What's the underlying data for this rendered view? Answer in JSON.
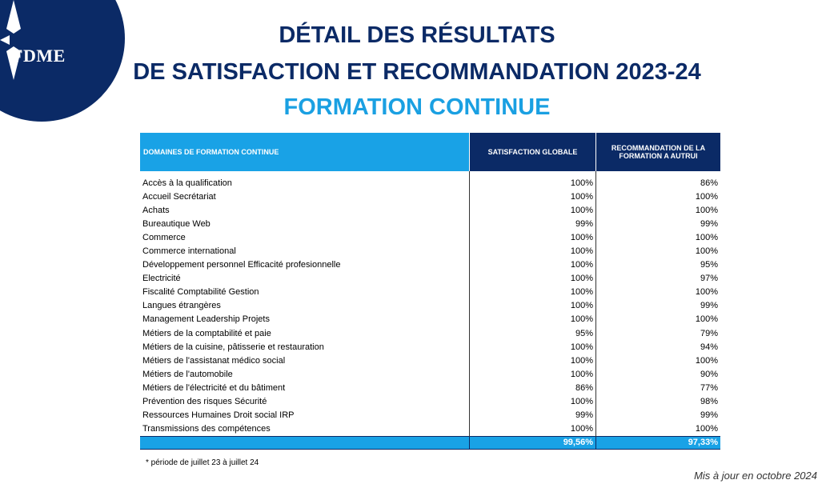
{
  "logo": {
    "text": "FDME"
  },
  "header": {
    "line1": "DÉTAIL DES RÉSULTATS",
    "line2": "DE SATISFACTION ET RECOMMANDATION 2023-24",
    "line3": "FORMATION CONTINUE"
  },
  "table": {
    "headers": [
      "DOMAINES DE FORMATION CONTINUE",
      "SATISFACTION GLOBALE",
      "RECOMMANDATION DE LA FORMATION A AUTRUI"
    ],
    "rows": [
      [
        "Accès à la qualification",
        "100%",
        "86%"
      ],
      [
        "Accueil Secrétariat",
        "100%",
        "100%"
      ],
      [
        "Achats",
        "100%",
        "100%"
      ],
      [
        "Bureautique Web",
        "99%",
        "99%"
      ],
      [
        "Commerce",
        "100%",
        "100%"
      ],
      [
        "Commerce international",
        "100%",
        "100%"
      ],
      [
        "Développement personnel Efficacité profesionnelle",
        "100%",
        "95%"
      ],
      [
        "Electricité",
        "100%",
        "97%"
      ],
      [
        "Fiscalité Comptabilité Gestion",
        "100%",
        "100%"
      ],
      [
        "Langues étrangères",
        "100%",
        "99%"
      ],
      [
        "Management Leadership Projets",
        "100%",
        "100%"
      ],
      [
        "Métiers de la comptabilité et paie",
        "95%",
        "79%"
      ],
      [
        "Métiers de la cuisine, pâtisserie et restauration",
        "100%",
        "94%"
      ],
      [
        "Métiers de l'assistanat médico social",
        "100%",
        "100%"
      ],
      [
        "Métiers de l'automobile",
        "100%",
        "90%"
      ],
      [
        "Métiers de l'électricité et du bâtiment",
        "86%",
        "77%"
      ],
      [
        "Prévention des risques Sécurité",
        "100%",
        "98%"
      ],
      [
        "Ressources Humaines Droit social IRP",
        "99%",
        "99%"
      ],
      [
        "Transmissions des compétences",
        "100%",
        "100%"
      ]
    ],
    "total": [
      "",
      "99,56%",
      "97,33%"
    ]
  },
  "footnote": "* période de juillet 23 à juillet 24",
  "updated": "Mis à jour en octobre 2024",
  "colors": {
    "navy": "#0b2a66",
    "cyan": "#19a2e6"
  }
}
